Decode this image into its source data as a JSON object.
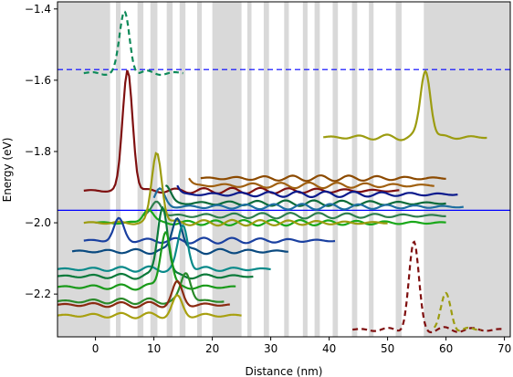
{
  "chart_data": {
    "type": "line",
    "title": "",
    "xlabel": "Distance (nm)",
    "ylabel": "Energy (eV)",
    "xlim": [
      -6.5,
      71
    ],
    "ylim": [
      -2.32,
      -1.38
    ],
    "xticks": [
      0,
      10,
      20,
      30,
      40,
      50,
      60,
      70
    ],
    "yticks": [
      -1.4,
      -1.6,
      -1.8,
      -2.0,
      -2.2
    ],
    "xtick_labels": [
      "0",
      "10",
      "20",
      "30",
      "40",
      "50",
      "60",
      "70"
    ],
    "ytick_labels": [
      "−1.4",
      "−1.6",
      "−1.8",
      "−2.0",
      "−2.2"
    ],
    "grid": false,
    "legend": "none",
    "reference_lines": [
      {
        "orientation": "horizontal",
        "y": -1.57,
        "style": "dashed",
        "color": "#0000ff"
      },
      {
        "orientation": "horizontal",
        "y": -1.965,
        "style": "solid",
        "color": "#0000ff"
      }
    ],
    "band_profile": {
      "color": "#d9d9d9",
      "barriers": [
        [
          -6.5,
          2.5
        ],
        [
          3.5,
          4.3
        ],
        [
          7.2,
          8.2
        ],
        [
          9.4,
          10.6
        ],
        [
          12.2,
          13.2
        ],
        [
          14.4,
          15.4
        ],
        [
          17.4,
          18.2
        ],
        [
          20,
          25
        ],
        [
          26,
          26.7
        ],
        [
          28.8,
          29.7
        ],
        [
          32.3,
          33.1
        ],
        [
          35.5,
          36.3
        ],
        [
          37.5,
          38.4
        ],
        [
          40.6,
          41.5
        ],
        [
          43.9,
          44.8
        ],
        [
          46.8,
          47.6
        ],
        [
          51.4,
          52.4
        ],
        [
          56.2,
          71
        ]
      ]
    },
    "hole_states": [
      {
        "energy": -1.91,
        "x0": -2,
        "x1": 52,
        "peak_x": 5.5,
        "peak_h": 0.34,
        "color": "#7f1010"
      },
      {
        "energy": -1.875,
        "x0": 18,
        "x1": 60,
        "peak_x": 15,
        "peak_h": 0.05,
        "color": "#8c4a00"
      },
      {
        "energy": -1.895,
        "x0": 16,
        "x1": 58,
        "peak_x": 15,
        "peak_h": 0.04,
        "color": "#a06010"
      },
      {
        "energy": -1.92,
        "x0": 14,
        "x1": 62,
        "peak_x": 13,
        "peak_h": 0.05,
        "color": "#0a1a8c"
      },
      {
        "energy": -1.945,
        "x0": 12,
        "x1": 60,
        "peak_x": 12,
        "peak_h": 0.05,
        "color": "#0b6b3a"
      },
      {
        "energy": -1.955,
        "x0": 10,
        "x1": 63,
        "peak_x": 11,
        "peak_h": 0.05,
        "color": "#1f6fa0"
      },
      {
        "energy": -1.98,
        "x0": 8,
        "x1": 60,
        "peak_x": 10.5,
        "peak_h": 0.04,
        "color": "#2f7f4f"
      },
      {
        "energy": -2.0,
        "x0": 0,
        "x1": 60,
        "peak_x": 9,
        "peak_h": 0.04,
        "color": "#1aa81a"
      },
      {
        "energy": -2.0,
        "x0": -2,
        "x1": 50,
        "peak_x": 10.5,
        "peak_h": 0.2,
        "color": "#9c9c10"
      },
      {
        "energy": -2.05,
        "x0": -2,
        "x1": 41,
        "peak_x": 4,
        "peak_h": 0.06,
        "color": "#1a40a0"
      },
      {
        "energy": -2.08,
        "x0": -4,
        "x1": 33,
        "peak_x": 14,
        "peak_h": 0.1,
        "color": "#0a4a80"
      },
      {
        "energy": -2.13,
        "x0": -6.5,
        "x1": 30,
        "peak_x": 15,
        "peak_h": 0.12,
        "color": "#0a8a8a"
      },
      {
        "energy": -2.15,
        "x0": -6.5,
        "x1": 27,
        "peak_x": 11.5,
        "peak_h": 0.2,
        "color": "#0a7a3a"
      },
      {
        "energy": -2.18,
        "x0": -6.5,
        "x1": 24,
        "peak_x": 12,
        "peak_h": 0.16,
        "color": "#1a9a1a"
      },
      {
        "energy": -2.22,
        "x0": -6.5,
        "x1": 22,
        "peak_x": 15.5,
        "peak_h": 0.08,
        "color": "#2a8a2a"
      },
      {
        "energy": -2.23,
        "x0": -6.5,
        "x1": 23,
        "peak_x": 14,
        "peak_h": 0.06,
        "color": "#8a2a10"
      },
      {
        "energy": -2.26,
        "x0": -6.5,
        "x1": 25,
        "peak_x": 14,
        "peak_h": 0.05,
        "color": "#a8a010"
      }
    ],
    "electron_states": [
      {
        "energy": -1.76,
        "x0": 39,
        "x1": 67,
        "peak_x": 56.5,
        "peak_h": 0.19,
        "color": "#9c9c10"
      },
      {
        "energy": -1.58,
        "x0": -2,
        "x1": 15,
        "peak_x": 5,
        "peak_h": 0.17,
        "color": "#0f8a5a",
        "dashed": true
      },
      {
        "energy": -2.3,
        "x0": 44,
        "x1": 70,
        "peak_x": 54.5,
        "peak_h": 0.24,
        "color": "#7f1010",
        "dashed": true
      },
      {
        "energy": -2.3,
        "x0": 58,
        "x1": 66,
        "peak_x": 60,
        "peak_h": 0.1,
        "color": "#9c9c10",
        "dashed": true
      }
    ]
  }
}
